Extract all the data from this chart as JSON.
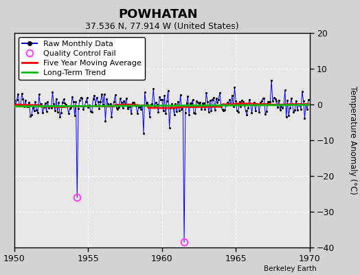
{
  "title": "POWHATAN",
  "subtitle": "37.536 N, 77.914 W (United States)",
  "ylabel": "Temperature Anomaly (°C)",
  "attribution": "Berkeley Earth",
  "xlim": [
    1950,
    1970
  ],
  "ylim": [
    -40,
    20
  ],
  "yticks": [
    -40,
    -30,
    -20,
    -10,
    0,
    10,
    20
  ],
  "xticks": [
    1950,
    1955,
    1960,
    1965,
    1970
  ],
  "bg_color": "#d3d3d3",
  "plot_bg_color": "#e8e8e8",
  "grid_color": "#ffffff",
  "line_color_raw": "#0000ff",
  "marker_color_raw": "#000000",
  "line_color_moving_avg": "#ff0000",
  "line_color_trend": "#00bb00",
  "qc_fail_color": "#ff44ff",
  "seed": 42,
  "n_years": 20,
  "start_year": 1950,
  "spike1_year": 1954.25,
  "spike1_val": -26.0,
  "spike2_year": 1961.5,
  "spike2_val": -38.5
}
